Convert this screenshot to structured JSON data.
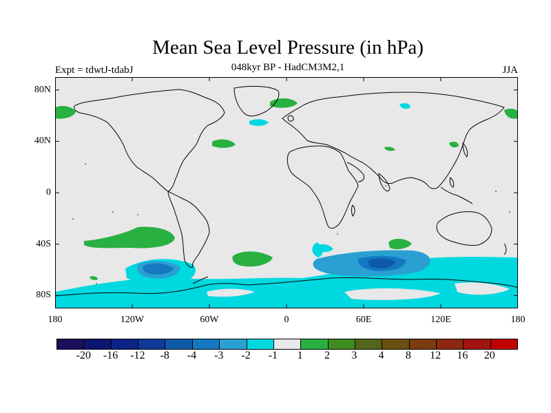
{
  "title": "Mean Sea Level Pressure (in hPa)",
  "subtitle": "048kyr BP - HadCM3M2,1",
  "left_label": "Expt = tdwtJ-tdabJ",
  "right_label": "JJA",
  "map": {
    "lon_range": [
      -180,
      180
    ],
    "lat_range": [
      -90,
      90
    ],
    "background_color": "#e8e8e8",
    "y_ticks": [
      {
        "value": 80,
        "label": "80N"
      },
      {
        "value": 40,
        "label": "40N"
      },
      {
        "value": 0,
        "label": "0"
      },
      {
        "value": -40,
        "label": "40S"
      },
      {
        "value": -80,
        "label": "80S"
      }
    ],
    "x_ticks": [
      {
        "value": -180,
        "label": "180"
      },
      {
        "value": -120,
        "label": "120W"
      },
      {
        "value": -60,
        "label": "60W"
      },
      {
        "value": 0,
        "label": "0"
      },
      {
        "value": 60,
        "label": "60E"
      },
      {
        "value": 120,
        "label": "120E"
      },
      {
        "value": 180,
        "label": "180"
      }
    ]
  },
  "colorbar": {
    "colors": [
      "#1a0f5a",
      "#0c1670",
      "#0d2488",
      "#0f3a98",
      "#0e5aa8",
      "#1478c2",
      "#2aa0d2",
      "#00d8e0",
      "#e8e8e8",
      "#28b040",
      "#3f8c20",
      "#52661a",
      "#6a5010",
      "#7a3c10",
      "#8c2810",
      "#a01414",
      "#c00000"
    ],
    "labels": [
      "-20",
      "-16",
      "-12",
      "-8",
      "-4",
      "-3",
      "-2",
      "-1",
      "1",
      "2",
      "3",
      "4",
      "8",
      "12",
      "16",
      "20"
    ]
  }
}
